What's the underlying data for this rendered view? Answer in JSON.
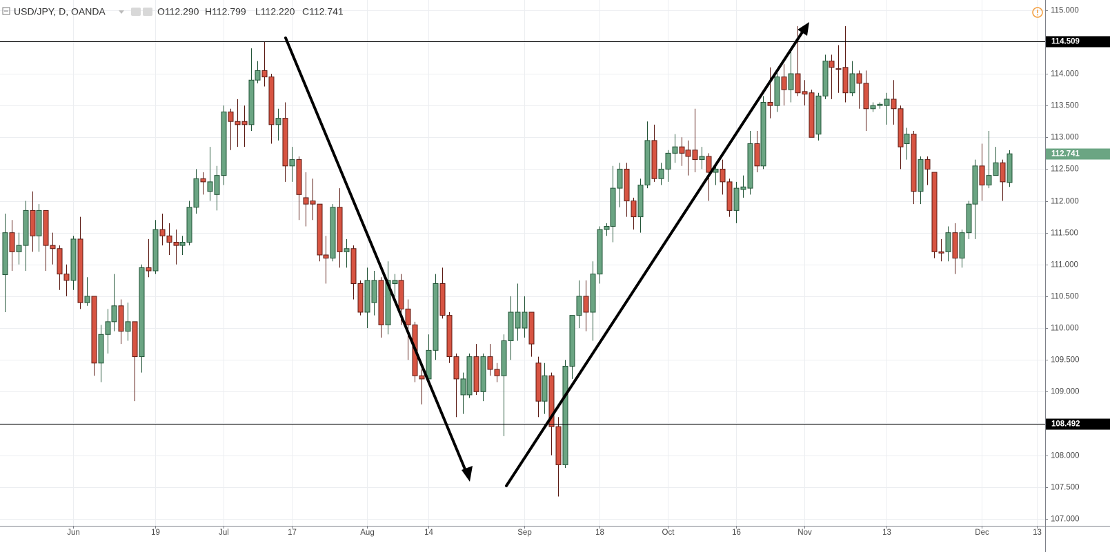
{
  "chart_data": {
    "type": "candlestick",
    "title": "USD/JPY, D, OANDA",
    "ohlc_text": [
      "O112.290",
      "H112.799",
      "L112.220",
      "C112.741"
    ],
    "up_color": "#6ba583",
    "down_color": "#d75442",
    "grid": true,
    "xlim": [
      -0.7,
      152.25
    ],
    "xticks": [
      {
        "value": 10,
        "label": "Jun"
      },
      {
        "value": 22,
        "label": "19"
      },
      {
        "value": 32,
        "label": "Jul"
      },
      {
        "value": 42,
        "label": "17"
      },
      {
        "value": 53,
        "label": "Aug"
      },
      {
        "value": 62,
        "label": "14"
      },
      {
        "value": 76,
        "label": "Sep"
      },
      {
        "value": 87,
        "label": "18"
      },
      {
        "value": 97,
        "label": "Oct"
      },
      {
        "value": 107,
        "label": "16"
      },
      {
        "value": 117,
        "label": "Nov"
      },
      {
        "value": 129,
        "label": "13"
      },
      {
        "value": 143,
        "label": "Dec"
      },
      {
        "value": 151,
        "label": "13"
      }
    ],
    "ylim": [
      106.89,
      115.16
    ],
    "yticks": [
      {
        "value": 107,
        "label": "107.000"
      },
      {
        "value": 107.5,
        "label": "107.500"
      },
      {
        "value": 108,
        "label": "108.000"
      },
      {
        "value": 108.5,
        "label": "108.500"
      },
      {
        "value": 109,
        "label": "109.000"
      },
      {
        "value": 109.5,
        "label": "109.500"
      },
      {
        "value": 110,
        "label": "110.000"
      },
      {
        "value": 110.5,
        "label": "110.500"
      },
      {
        "value": 111,
        "label": "111.000"
      },
      {
        "value": 111.5,
        "label": "111.500"
      },
      {
        "value": 112,
        "label": "112.000"
      },
      {
        "value": 112.5,
        "label": "112.500"
      },
      {
        "value": 113,
        "label": "113.000"
      },
      {
        "value": 113.5,
        "label": "113.500"
      },
      {
        "value": 114,
        "label": "114.000"
      },
      {
        "value": 114.5,
        "label": "114.500"
      },
      {
        "value": 115,
        "label": "115.000"
      }
    ],
    "hlines": [
      114.509,
      108.492
    ],
    "open": [
      110.84,
      111.5,
      111.2,
      111.3,
      111.85,
      111.45,
      111.85,
      111.3,
      111.25,
      110.85,
      110.75,
      111.4,
      110.4,
      110.5,
      109.45,
      109.9,
      110.1,
      110.35,
      109.95,
      110.1,
      109.55,
      110.95,
      110.9,
      111.55,
      111.45,
      111.35,
      111.3,
      111.35,
      111.9,
      112.35,
      112.15,
      112.1,
      112.4,
      113.4,
      113.25,
      113.25,
      113.2,
      113.9,
      114.05,
      113.95,
      113.2,
      113.3,
      112.55,
      112.65,
      112.05,
      112.0,
      111.95,
      111.15,
      111.1,
      111.9,
      111.2,
      111.25,
      110.7,
      110.25,
      110.4,
      110.75,
      110.05,
      110.7,
      110.75,
      110.3,
      110.05,
      109.25,
      109.2,
      109.65,
      110.7,
      110.2,
      109.55,
      108.95,
      108.95,
      109.55,
      109.0,
      109.55,
      109.35,
      109.25,
      109.8,
      110.0,
      110.0,
      110.25,
      109.45,
      108.85,
      109.25,
      108.45,
      107.85,
      109.4,
      110.2,
      110.5,
      110.25,
      110.85,
      111.55,
      111.6,
      112.2,
      112.5,
      112.0,
      111.75,
      112.25,
      112.95,
      112.35,
      112.5,
      112.75,
      112.85,
      112.8,
      112.8,
      112.65,
      112.7,
      112.45,
      112.5,
      112.3,
      111.85,
      112.18,
      112.2,
      112.9,
      112.55,
      113.55,
      113.5,
      113.95,
      113.75,
      114.0,
      113.72,
      113.7,
      113.05,
      113.65,
      114.2,
      114.08,
      114.1,
      113.7,
      114.0,
      113.85,
      113.45,
      113.5,
      113.5,
      113.6,
      113.45,
      112.9,
      113.05,
      112.15,
      112.65,
      112.45,
      111.2,
      111.2,
      111.5,
      111.1,
      111.5,
      111.95,
      112.55,
      112.25,
      112.4,
      112.6,
      112.29
    ],
    "high": [
      111.8,
      111.7,
      111.5,
      112.0,
      112.15,
      111.95,
      111.85,
      111.5,
      111.3,
      111.0,
      111.45,
      111.75,
      110.8,
      110.5,
      110.05,
      110.3,
      110.85,
      110.45,
      110.4,
      110.1,
      111.0,
      111.4,
      111.7,
      111.8,
      111.65,
      111.55,
      111.45,
      112.0,
      112.5,
      112.45,
      112.85,
      112.55,
      113.5,
      113.45,
      113.6,
      113.5,
      114.4,
      114.2,
      114.5,
      114.0,
      113.45,
      113.55,
      112.85,
      112.7,
      112.45,
      112.35,
      111.95,
      111.45,
      111.95,
      112.2,
      111.4,
      111.3,
      110.75,
      110.95,
      110.9,
      110.8,
      111.05,
      110.85,
      110.85,
      110.45,
      110.1,
      109.35,
      109.9,
      110.85,
      110.95,
      110.25,
      109.6,
      109.3,
      109.6,
      109.75,
      109.6,
      109.75,
      109.45,
      109.9,
      110.5,
      110.7,
      110.5,
      110.25,
      109.55,
      109.45,
      109.3,
      108.6,
      109.5,
      110.2,
      110.75,
      110.75,
      111.05,
      111.6,
      111.65,
      112.55,
      112.6,
      112.6,
      112.05,
      112.35,
      113.25,
      113.2,
      112.6,
      112.8,
      113.05,
      113.0,
      112.95,
      113.45,
      112.85,
      112.75,
      112.6,
      112.65,
      112.35,
      112.3,
      112.4,
      113.1,
      113.1,
      113.65,
      114.1,
      114.05,
      114.15,
      114.35,
      114.75,
      113.9,
      113.75,
      113.7,
      114.3,
      114.3,
      114.45,
      114.75,
      114.2,
      114.05,
      114.05,
      113.55,
      113.55,
      113.7,
      113.9,
      113.5,
      113.15,
      113.1,
      112.7,
      112.7,
      112.45,
      111.4,
      111.6,
      111.65,
      111.55,
      112.0,
      112.65,
      112.9,
      113.1,
      112.85,
      112.65,
      112.799
    ],
    "low": [
      110.25,
      110.9,
      111.0,
      110.9,
      111.2,
      111.2,
      110.9,
      111.0,
      110.6,
      110.5,
      110.6,
      110.3,
      110.35,
      109.25,
      109.15,
      109.6,
      109.95,
      109.75,
      109.8,
      108.85,
      109.3,
      110.8,
      110.85,
      111.3,
      111.15,
      111.0,
      111.15,
      111.3,
      111.8,
      112.1,
      112.0,
      111.85,
      112.25,
      112.8,
      112.85,
      112.85,
      113.1,
      113.85,
      113.8,
      112.9,
      112.95,
      112.3,
      112.3,
      111.7,
      111.6,
      111.7,
      111.05,
      110.7,
      111.05,
      110.95,
      110.95,
      110.45,
      110.2,
      110.0,
      110.2,
      109.85,
      109.9,
      110.5,
      110.05,
      109.5,
      109.15,
      108.8,
      109.15,
      109.5,
      110.15,
      109.45,
      108.6,
      108.65,
      108.9,
      108.95,
      108.85,
      109.25,
      109.15,
      108.3,
      109.5,
      109.8,
      109.85,
      109.55,
      108.6,
      108.65,
      108.0,
      107.35,
      107.8,
      109.2,
      110.0,
      109.95,
      109.8,
      110.7,
      111.45,
      111.35,
      111.9,
      111.75,
      111.55,
      111.5,
      112.2,
      112.3,
      112.25,
      112.3,
      112.6,
      112.55,
      112.4,
      112.45,
      112.5,
      112.0,
      112.25,
      112.1,
      111.75,
      111.65,
      112.05,
      112.1,
      112.45,
      112.5,
      113.3,
      113.4,
      113.5,
      113.55,
      113.65,
      113.5,
      113.0,
      112.95,
      113.6,
      113.6,
      113.7,
      113.55,
      113.65,
      113.45,
      113.1,
      113.4,
      113.45,
      113.2,
      113.2,
      112.5,
      112.65,
      111.95,
      111.95,
      112.25,
      111.1,
      111.05,
      111.05,
      110.85,
      110.95,
      111.4,
      111.4,
      112.0,
      112.2,
      112.4,
      112.0,
      112.22
    ],
    "close": [
      111.5,
      111.2,
      111.3,
      111.85,
      111.45,
      111.85,
      111.3,
      111.25,
      110.85,
      110.75,
      111.4,
      110.4,
      110.5,
      109.45,
      109.9,
      110.1,
      110.35,
      109.95,
      110.1,
      109.55,
      110.95,
      110.9,
      111.55,
      111.45,
      111.35,
      111.3,
      111.35,
      111.9,
      112.35,
      112.3,
      112.3,
      112.4,
      113.4,
      113.25,
      113.2,
      113.2,
      113.9,
      114.05,
      113.95,
      113.2,
      113.3,
      112.55,
      112.65,
      112.1,
      111.95,
      111.95,
      111.15,
      111.1,
      111.9,
      111.2,
      111.25,
      110.7,
      110.25,
      110.75,
      110.75,
      110.05,
      110.75,
      110.75,
      110.3,
      110.05,
      109.25,
      109.2,
      109.65,
      110.7,
      110.2,
      109.55,
      109.2,
      109.2,
      109.55,
      109.0,
      109.55,
      109.35,
      109.25,
      109.8,
      110.25,
      110.25,
      110.25,
      109.75,
      108.85,
      109.25,
      108.45,
      107.85,
      109.4,
      110.2,
      110.5,
      110.25,
      110.85,
      111.55,
      111.6,
      112.2,
      112.5,
      112.0,
      111.75,
      112.25,
      112.95,
      112.35,
      112.5,
      112.75,
      112.85,
      112.75,
      112.7,
      112.65,
      112.7,
      112.45,
      112.5,
      112.3,
      111.85,
      112.2,
      112.22,
      112.9,
      112.55,
      113.55,
      113.5,
      113.95,
      113.75,
      114.0,
      113.7,
      113.68,
      113.0,
      113.65,
      114.2,
      114.1,
      114.07,
      113.7,
      114.0,
      113.85,
      113.45,
      113.5,
      113.52,
      113.6,
      113.45,
      112.85,
      113.05,
      112.15,
      112.65,
      112.5,
      111.2,
      111.18,
      111.5,
      111.1,
      111.5,
      111.95,
      112.55,
      112.25,
      112.4,
      112.6,
      112.3,
      112.741
    ]
  }
}
